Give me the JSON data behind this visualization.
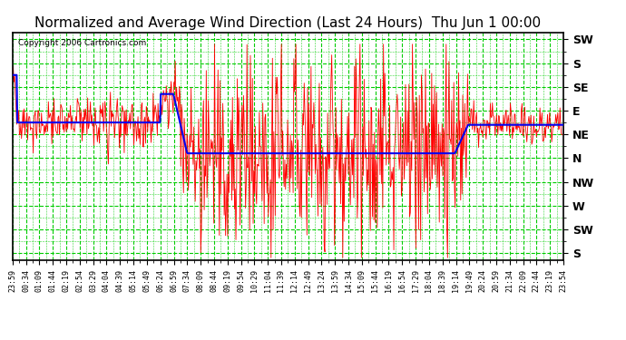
{
  "title": "Normalized and Average Wind Direction (Last 24 Hours)  Thu Jun 1 00:00",
  "copyright": "Copyright 2006 Cartronics.com",
  "background_color": "#ffffff",
  "plot_bg_color": "#ffffff",
  "grid_color": "#00cc00",
  "red_color": "#ff0000",
  "blue_color": "#0000ee",
  "title_color": "#000000",
  "ytick_labels": [
    "SW",
    "S",
    "SE",
    "E",
    "NE",
    "N",
    "NW",
    "W",
    "SW",
    "S"
  ],
  "ytick_positions": [
    0,
    1,
    2,
    3,
    4,
    5,
    6,
    7,
    8,
    9
  ],
  "ylim_min": -0.3,
  "ylim_max": 9.3,
  "xlabel_fontsize": 6,
  "ylabel_fontsize": 9,
  "title_fontsize": 11
}
